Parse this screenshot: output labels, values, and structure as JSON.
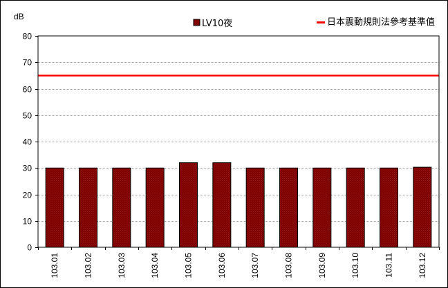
{
  "chart_data": {
    "type": "bar",
    "ylabel": "dB",
    "ylim": [
      0,
      80
    ],
    "yticks": [
      0,
      10,
      20,
      30,
      40,
      50,
      60,
      70,
      80
    ],
    "grid": true,
    "legend_placement": "top",
    "categories": [
      "103.01",
      "103.02",
      "103.03",
      "103.04",
      "103.05",
      "103.06",
      "103.07",
      "103.08",
      "103.09",
      "103.10",
      "103.11",
      "103.12"
    ],
    "series": [
      {
        "name": "LV10夜",
        "values": [
          30,
          30,
          30,
          30,
          32,
          32,
          30,
          30,
          30,
          30,
          30,
          30.3
        ],
        "color": "#800000"
      }
    ],
    "reference_lines": [
      {
        "name": "日本震動規則法參考基準值",
        "value": 65,
        "color": "#ff0000"
      }
    ]
  }
}
